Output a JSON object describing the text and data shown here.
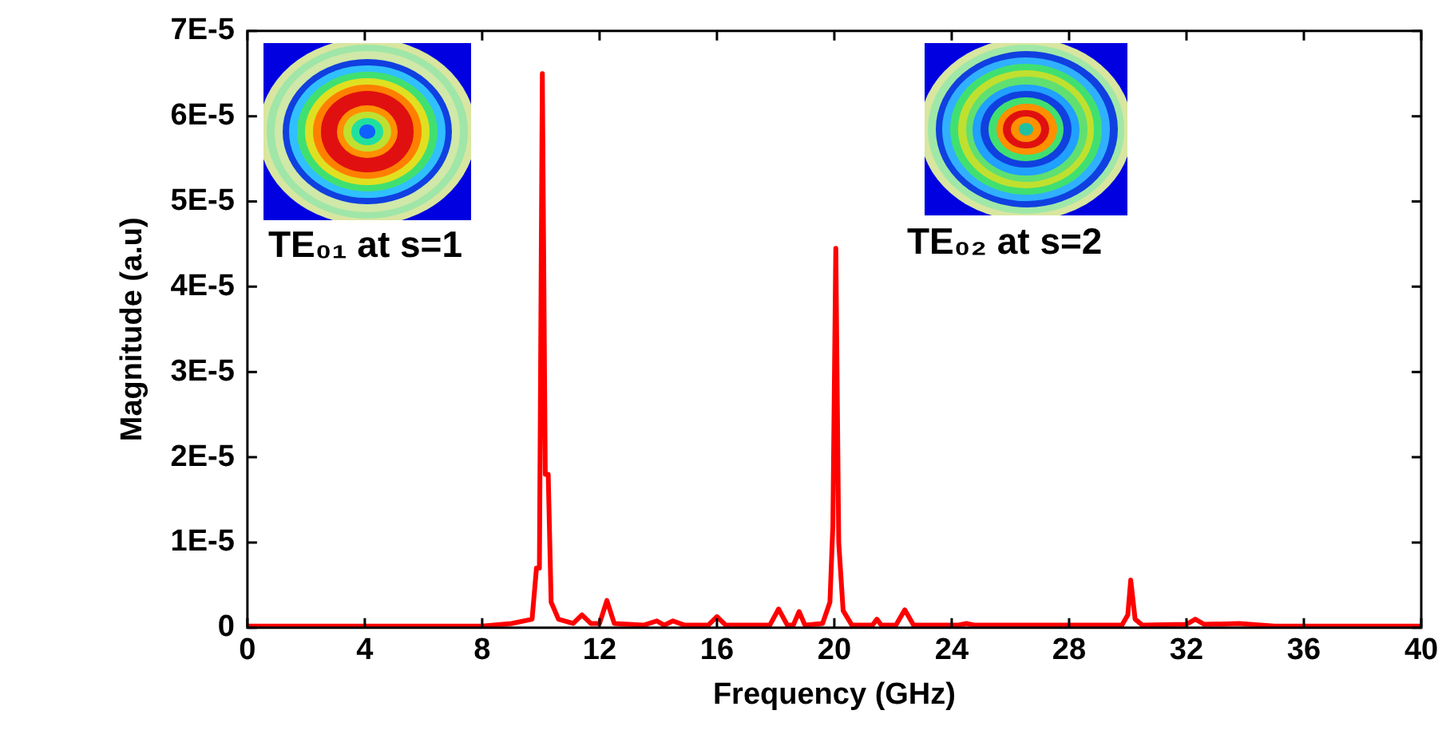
{
  "chart_data": {
    "type": "line",
    "xlabel": "Frequency (GHz)",
    "ylabel": "Magnitude (a.u)",
    "annotations": [
      "TE₀₁ at s=1",
      "TE₀₂ at s=2"
    ],
    "x": [
      0,
      4,
      8,
      9,
      9.7,
      9.85,
      9.95,
      10.05,
      10.15,
      10.25,
      10.35,
      10.6,
      11.1,
      11.4,
      11.7,
      12.0,
      12.25,
      12.5,
      13.5,
      13.95,
      14.2,
      14.5,
      14.9,
      15.7,
      16.0,
      16.3,
      17.8,
      18.1,
      18.4,
      18.6,
      18.8,
      19.0,
      19.6,
      19.85,
      19.95,
      20.05,
      20.15,
      20.3,
      20.6,
      21.3,
      21.45,
      21.6,
      22.1,
      22.4,
      22.7,
      24.2,
      24.5,
      24.8,
      29.8,
      30.0,
      30.1,
      30.25,
      30.5,
      32.0,
      32.3,
      32.6,
      33.8,
      35,
      40
    ],
    "series": [
      {
        "color": "#ff0000",
        "values": [
          2e-07,
          2e-07,
          2e-07,
          5e-07,
          1e-06,
          7e-06,
          7e-06,
          6.5e-05,
          1.8e-05,
          1.8e-05,
          3e-06,
          1e-06,
          5e-07,
          1.5e-06,
          5e-07,
          5e-07,
          3.2e-06,
          5e-07,
          3e-07,
          8e-07,
          3e-07,
          8e-07,
          3e-07,
          3e-07,
          1.3e-06,
          3e-07,
          3e-07,
          2.2e-06,
          3e-07,
          3e-07,
          1.9e-06,
          3e-07,
          5e-07,
          3e-06,
          1.2e-05,
          4.45e-05,
          1e-05,
          2e-06,
          3e-07,
          3e-07,
          1e-06,
          3e-07,
          3e-07,
          2.1e-06,
          3e-07,
          3e-07,
          5e-07,
          3e-07,
          3e-07,
          1.5e-06,
          5.6e-06,
          1e-06,
          3e-07,
          4e-07,
          1e-06,
          4e-07,
          5e-07,
          2e-07,
          2e-07
        ]
      }
    ],
    "xlim": [
      0,
      40
    ],
    "xticks": [
      0,
      4,
      8,
      12,
      16,
      20,
      24,
      28,
      32,
      36,
      40
    ],
    "ylim": [
      0,
      7e-05
    ],
    "yticks": [
      0,
      {
        "value": 1e-05,
        "label": "1E-5"
      },
      {
        "value": 2e-05,
        "label": "2E-5"
      },
      {
        "value": 3e-05,
        "label": "3E-5"
      },
      {
        "value": 4e-05,
        "label": "4E-5"
      },
      {
        "value": 5e-05,
        "label": "5E-5"
      },
      {
        "value": 6e-05,
        "label": "6E-5"
      },
      {
        "value": 7e-05,
        "label": "7E-5"
      }
    ],
    "line_style": "solid",
    "marker": "none"
  }
}
